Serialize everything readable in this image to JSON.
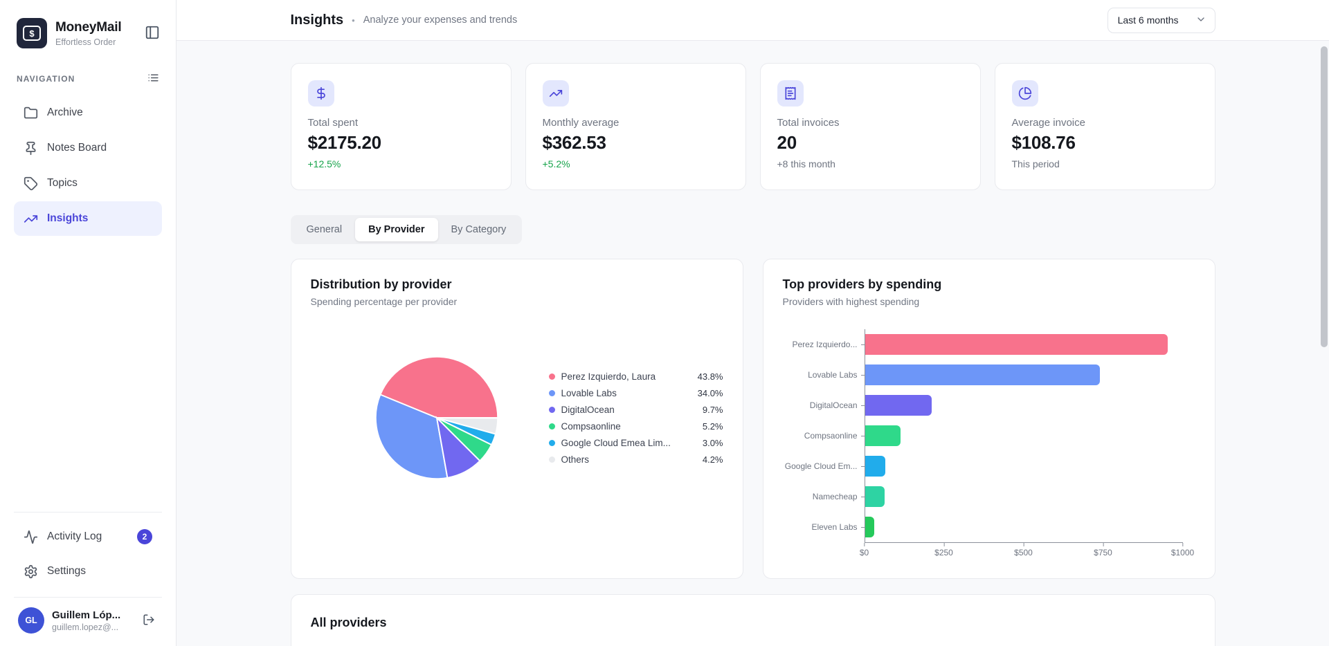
{
  "app": {
    "name": "MoneyMail",
    "tagline": "Effortless Order"
  },
  "sidebar": {
    "section_label": "NAVIGATION",
    "items": [
      {
        "label": "Archive",
        "icon": "folder",
        "active": false
      },
      {
        "label": "Notes Board",
        "icon": "pin",
        "active": false
      },
      {
        "label": "Topics",
        "icon": "tag",
        "active": false
      },
      {
        "label": "Insights",
        "icon": "trending-up",
        "active": true
      }
    ],
    "footer_items": [
      {
        "label": "Activity Log",
        "icon": "activity",
        "badge": "2"
      },
      {
        "label": "Settings",
        "icon": "settings"
      }
    ],
    "user": {
      "initials": "GL",
      "name": "Guillem Lóp...",
      "email": "guillem.lopez@..."
    }
  },
  "header": {
    "title": "Insights",
    "separator": "•",
    "subtitle": "Analyze your expenses and trends",
    "period_select": "Last 6 months"
  },
  "stats": [
    {
      "icon": "dollar",
      "label": "Total spent",
      "value": "$2175.20",
      "delta": "+12.5%",
      "delta_positive": true
    },
    {
      "icon": "trending-up",
      "label": "Monthly average",
      "value": "$362.53",
      "delta": "+5.2%",
      "delta_positive": true
    },
    {
      "icon": "receipt",
      "label": "Total invoices",
      "value": "20",
      "delta": "+8 this month",
      "delta_positive": false
    },
    {
      "icon": "pie",
      "label": "Average invoice",
      "value": "$108.76",
      "delta": "This period",
      "delta_positive": false
    }
  ],
  "tabs": [
    {
      "label": "General",
      "active": false
    },
    {
      "label": "By Provider",
      "active": true
    },
    {
      "label": "By Category",
      "active": false
    }
  ],
  "chart_data": [
    {
      "type": "pie",
      "title": "Distribution by provider",
      "subtitle": "Spending percentage per provider",
      "legend_position": "right",
      "slices": [
        {
          "label": "Perez Izquierdo, Laura",
          "pct": 43.8,
          "color": "#f8728c"
        },
        {
          "label": "Lovable Labs",
          "pct": 34.0,
          "color": "#6d96f8"
        },
        {
          "label": "DigitalOcean",
          "pct": 9.7,
          "color": "#7168f0"
        },
        {
          "label": "Compsaonline",
          "pct": 5.2,
          "color": "#2fd98a"
        },
        {
          "label": "Google Cloud Emea Lim...",
          "pct": 3.0,
          "color": "#21aceb"
        },
        {
          "label": "Others",
          "pct": 4.2,
          "color": "#e8eaed"
        }
      ]
    },
    {
      "type": "bar",
      "orientation": "horizontal",
      "title": "Top providers by spending",
      "subtitle": "Providers with highest spending",
      "categories": [
        "Perez Izquierdo...",
        "Lovable Labs",
        "DigitalOcean",
        "Compsaonline",
        "Google Cloud Em...",
        "Namecheap",
        "Eleven Labs"
      ],
      "values": [
        952.7,
        739.6,
        211.0,
        113.1,
        65.3,
        62.0,
        29.4
      ],
      "colors": [
        "#f8728c",
        "#6d96f8",
        "#7168f0",
        "#2fd98a",
        "#21aceb",
        "#2ed3a3",
        "#25c95b"
      ],
      "xlabel": "",
      "ylabel": "",
      "xlim": [
        0,
        1000
      ],
      "x_ticks": [
        "$0",
        "$250",
        "$500",
        "$750",
        "$1000"
      ],
      "grid": false
    }
  ],
  "providers_section": {
    "title": "All providers"
  }
}
